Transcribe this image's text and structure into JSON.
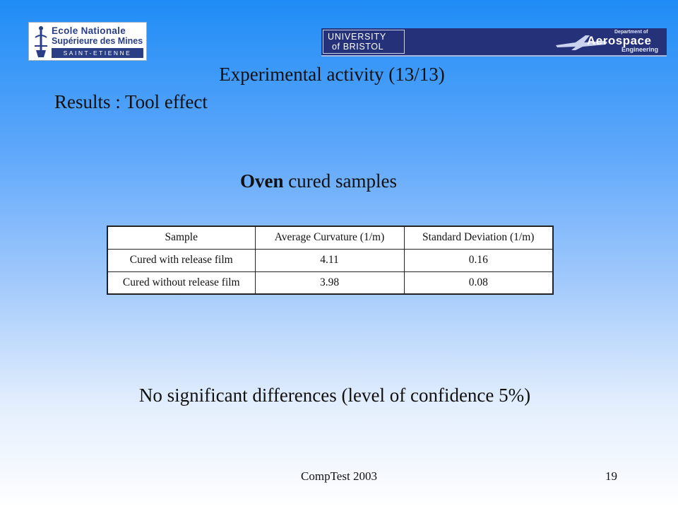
{
  "logos": {
    "ensm": {
      "line1": "Ecole Nationale",
      "line2": "Supérieure des Mines",
      "line3": "SAINT-ETIENNE"
    },
    "bristol": {
      "line1": "UNIVERSITY",
      "line2": "of BRISTOL"
    },
    "aerospace": {
      "dept": "Department of",
      "word": "Aerospace",
      "engineering": "Engineering"
    }
  },
  "slide": {
    "title": "Experimental activity (13/13)",
    "subtitle": "Results : Tool effect",
    "heading_bold": "Oven",
    "heading_rest": " cured samples",
    "conclusion": "No significant  differences (level of confidence 5%)"
  },
  "table": {
    "headers": [
      "Sample",
      "Average Curvature (1/m)",
      "Standard Deviation (1/m)"
    ],
    "rows": [
      [
        "Cured with release film",
        "4.11",
        "0.16"
      ],
      [
        "Cured without release film",
        "3.98",
        "0.08"
      ]
    ]
  },
  "footer": {
    "center": "CompTest 2003",
    "page": "19"
  },
  "colors": {
    "background_top": "#1f8cf5",
    "background_bottom": "#ffffff",
    "logo_navy": "#25327a"
  }
}
